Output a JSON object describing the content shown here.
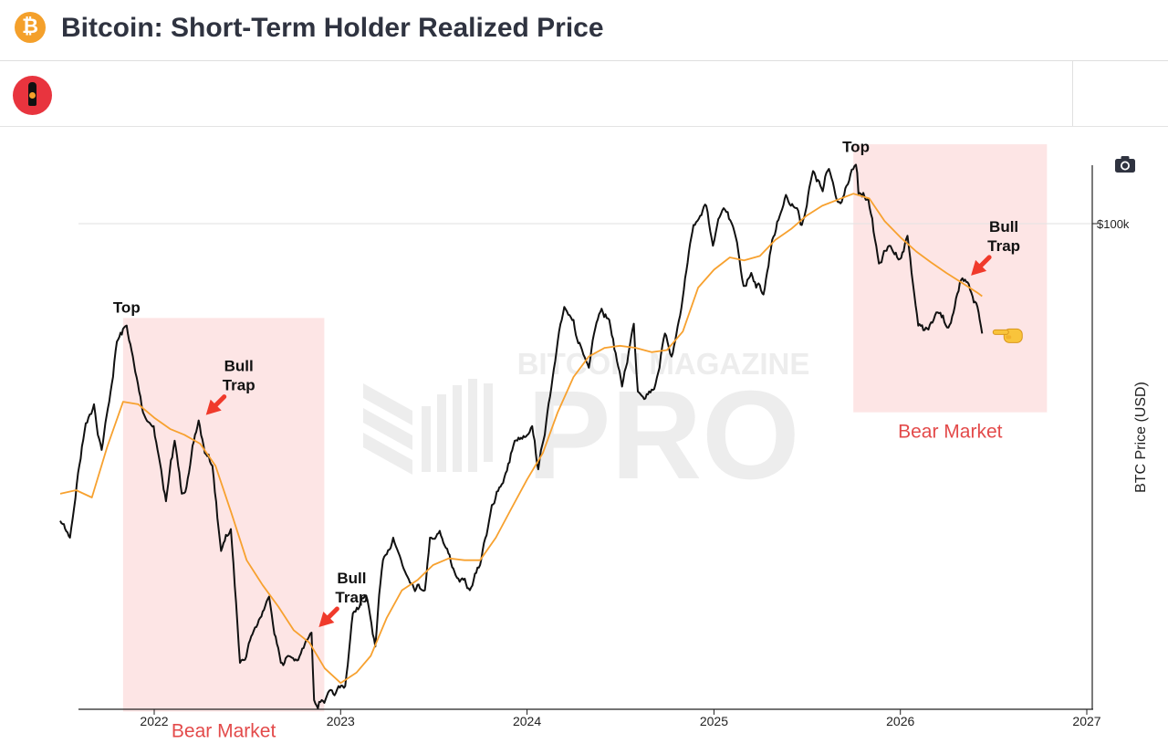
{
  "header": {
    "title": "Bitcoin: Short-Term Holder Realized Price",
    "logo_icon": "bitcoin-icon",
    "logo_glyph": "₿"
  },
  "toolbar": {
    "avatar_icon": "bottle-avatar-icon",
    "screenshot_icon": "camera-icon"
  },
  "colors": {
    "price": "#111111",
    "sth_realized_price": "#f7a12f",
    "bear_zone": "#fde5e5",
    "bear_label": "#e34a4a",
    "arrow": "#f03a2b"
  },
  "watermark": {
    "line1": "BITCOIN MAGAZINE",
    "line2": "PRO"
  },
  "chart_data": {
    "type": "line",
    "x_ticks": [
      "2022",
      "2023",
      "2024",
      "2025",
      "2026",
      "2027"
    ],
    "xlim": [
      "2021-07-01",
      "2027-01-01"
    ],
    "y_scale": "log",
    "y_ticks": [
      {
        "value": 100000,
        "label": "$100k"
      }
    ],
    "ylabel": "BTC Price (USD)",
    "grid": "horizontal line at $100k",
    "series": [
      {
        "key": "price",
        "points": [
          [
            "2021-07-01",
            32500
          ],
          [
            "2021-07-20",
            30500
          ],
          [
            "2021-08-05",
            39000
          ],
          [
            "2021-08-20",
            47000
          ],
          [
            "2021-09-05",
            50500
          ],
          [
            "2021-09-20",
            42500
          ],
          [
            "2021-10-05",
            51000
          ],
          [
            "2021-10-20",
            64000
          ],
          [
            "2021-11-08",
            68000
          ],
          [
            "2021-11-25",
            57000
          ],
          [
            "2021-12-10",
            49000
          ],
          [
            "2021-12-31",
            46500
          ],
          [
            "2022-01-10",
            41500
          ],
          [
            "2022-01-24",
            35000
          ],
          [
            "2022-02-10",
            44000
          ],
          [
            "2022-02-24",
            36000
          ],
          [
            "2022-03-10",
            39000
          ],
          [
            "2022-03-29",
            47500
          ],
          [
            "2022-04-10",
            42000
          ],
          [
            "2022-04-25",
            40000
          ],
          [
            "2022-05-12",
            29000
          ],
          [
            "2022-05-31",
            31500
          ],
          [
            "2022-06-18",
            19000
          ],
          [
            "2022-07-10",
            21000
          ],
          [
            "2022-08-14",
            24400
          ],
          [
            "2022-09-06",
            19000
          ],
          [
            "2022-09-20",
            19500
          ],
          [
            "2022-10-10",
            19200
          ],
          [
            "2022-11-05",
            21300
          ],
          [
            "2022-11-10",
            16500
          ],
          [
            "2022-11-25",
            16500
          ],
          [
            "2022-12-20",
            16800
          ],
          [
            "2023-01-10",
            17400
          ],
          [
            "2023-01-25",
            22900
          ],
          [
            "2023-02-20",
            24500
          ],
          [
            "2023-03-10",
            20200
          ],
          [
            "2023-03-25",
            28000
          ],
          [
            "2023-04-14",
            30500
          ],
          [
            "2023-05-12",
            26300
          ],
          [
            "2023-06-15",
            25000
          ],
          [
            "2023-06-25",
            30500
          ],
          [
            "2023-07-14",
            31300
          ],
          [
            "2023-08-17",
            26200
          ],
          [
            "2023-09-11",
            25000
          ],
          [
            "2023-10-01",
            27500
          ],
          [
            "2023-10-24",
            34500
          ],
          [
            "2023-11-15",
            37500
          ],
          [
            "2023-12-08",
            44000
          ],
          [
            "2024-01-11",
            46500
          ],
          [
            "2024-01-23",
            39500
          ],
          [
            "2024-02-15",
            52000
          ],
          [
            "2024-03-14",
            73000
          ],
          [
            "2024-04-01",
            69500
          ],
          [
            "2024-04-15",
            63000
          ],
          [
            "2024-05-01",
            58000
          ],
          [
            "2024-05-21",
            71000
          ],
          [
            "2024-06-10",
            69500
          ],
          [
            "2024-07-05",
            54000
          ],
          [
            "2024-07-28",
            68500
          ],
          [
            "2024-08-05",
            53000
          ],
          [
            "2024-09-06",
            53500
          ],
          [
            "2024-09-27",
            66000
          ],
          [
            "2024-10-10",
            60500
          ],
          [
            "2024-10-29",
            72500
          ],
          [
            "2024-11-13",
            90000
          ],
          [
            "2024-11-22",
            99500
          ],
          [
            "2024-12-05",
            103000
          ],
          [
            "2024-12-17",
            107000
          ],
          [
            "2024-12-30",
            92000
          ],
          [
            "2025-01-20",
            106000
          ],
          [
            "2025-02-10",
            97000
          ],
          [
            "2025-02-28",
            79000
          ],
          [
            "2025-03-15",
            83000
          ],
          [
            "2025-04-08",
            76500
          ],
          [
            "2025-04-25",
            94000
          ],
          [
            "2025-05-22",
            111500
          ],
          [
            "2025-06-15",
            105000
          ],
          [
            "2025-06-22",
            99500
          ],
          [
            "2025-07-14",
            122000
          ],
          [
            "2025-08-02",
            113000
          ],
          [
            "2025-08-14",
            123000
          ],
          [
            "2025-09-01",
            108500
          ],
          [
            "2025-09-20",
            116000
          ],
          [
            "2025-10-06",
            125000
          ],
          [
            "2025-10-11",
            112000
          ],
          [
            "2025-10-30",
            110000
          ],
          [
            "2025-11-20",
            86000
          ],
          [
            "2025-12-10",
            92000
          ],
          [
            "2025-12-31",
            87500
          ],
          [
            "2026-01-15",
            95500
          ],
          [
            "2026-02-05",
            68000
          ],
          [
            "2026-02-25",
            67000
          ],
          [
            "2026-03-15",
            71500
          ],
          [
            "2026-04-05",
            67500
          ],
          [
            "2026-04-25",
            77500
          ],
          [
            "2026-05-05",
            80500
          ],
          [
            "2026-05-20",
            77000
          ],
          [
            "2026-06-01",
            73000
          ],
          [
            "2026-06-10",
            66000
          ]
        ]
      },
      {
        "key": "sth_realized_price",
        "points": [
          [
            "2021-07-01",
            36000
          ],
          [
            "2021-08-01",
            36500
          ],
          [
            "2021-09-01",
            35500
          ],
          [
            "2021-10-01",
            43000
          ],
          [
            "2021-11-01",
            51000
          ],
          [
            "2021-12-01",
            50500
          ],
          [
            "2022-01-01",
            48000
          ],
          [
            "2022-02-01",
            46000
          ],
          [
            "2022-03-01",
            45000
          ],
          [
            "2022-04-01",
            43500
          ],
          [
            "2022-05-01",
            40000
          ],
          [
            "2022-06-01",
            33500
          ],
          [
            "2022-07-01",
            28000
          ],
          [
            "2022-08-01",
            25500
          ],
          [
            "2022-09-01",
            23500
          ],
          [
            "2022-10-01",
            21500
          ],
          [
            "2022-11-01",
            20500
          ],
          [
            "2022-12-01",
            18600
          ],
          [
            "2023-01-01",
            17600
          ],
          [
            "2023-02-01",
            18300
          ],
          [
            "2023-03-01",
            19500
          ],
          [
            "2023-04-01",
            22500
          ],
          [
            "2023-05-01",
            25000
          ],
          [
            "2023-06-01",
            26000
          ],
          [
            "2023-07-01",
            27500
          ],
          [
            "2023-08-01",
            28200
          ],
          [
            "2023-09-01",
            28000
          ],
          [
            "2023-10-01",
            28000
          ],
          [
            "2023-11-01",
            30500
          ],
          [
            "2023-12-01",
            34000
          ],
          [
            "2024-01-01",
            38000
          ],
          [
            "2024-02-01",
            42000
          ],
          [
            "2024-03-01",
            49000
          ],
          [
            "2024-04-01",
            56000
          ],
          [
            "2024-05-01",
            60500
          ],
          [
            "2024-06-01",
            62500
          ],
          [
            "2024-07-01",
            63000
          ],
          [
            "2024-08-01",
            62500
          ],
          [
            "2024-09-01",
            61500
          ],
          [
            "2024-10-01",
            62000
          ],
          [
            "2024-11-01",
            66500
          ],
          [
            "2024-12-01",
            78500
          ],
          [
            "2025-01-01",
            84000
          ],
          [
            "2025-02-01",
            88000
          ],
          [
            "2025-03-01",
            87000
          ],
          [
            "2025-04-01",
            88500
          ],
          [
            "2025-05-01",
            94000
          ],
          [
            "2025-06-01",
            98000
          ],
          [
            "2025-07-01",
            103000
          ],
          [
            "2025-08-01",
            107000
          ],
          [
            "2025-09-01",
            109500
          ],
          [
            "2025-10-01",
            112000
          ],
          [
            "2025-11-01",
            110000
          ],
          [
            "2025-12-01",
            101000
          ],
          [
            "2026-01-01",
            95000
          ],
          [
            "2026-02-01",
            90000
          ],
          [
            "2026-03-01",
            86500
          ],
          [
            "2026-04-01",
            83000
          ],
          [
            "2026-05-01",
            80000
          ],
          [
            "2026-06-01",
            77000
          ],
          [
            "2026-06-10",
            76000
          ]
        ]
      }
    ],
    "bear_market_zones": [
      {
        "start": "2021-11-01",
        "end": "2022-11-30",
        "y_top": 70000,
        "y_bottom": 15800,
        "label": "Bear Market"
      },
      {
        "start": "2025-10-01",
        "end": "2026-10-15",
        "y_top": 135000,
        "y_bottom": 49000,
        "label": "Bear Market"
      }
    ],
    "annotations": [
      {
        "text": "Top",
        "date": "2021-11-08",
        "value": 68000
      },
      {
        "text": "Bull Trap",
        "date": "2022-03-29",
        "value": 47500
      },
      {
        "text": "Bull Trap",
        "date": "2022-11-05",
        "value": 21300
      },
      {
        "text": "Top",
        "date": "2025-10-06",
        "value": 125000
      },
      {
        "text": "Bull Trap",
        "date": "2026-05-05",
        "value": 80500
      }
    ],
    "pointer_annotation": {
      "date": "2026-06-10",
      "value": 66000,
      "icon": "pointing-hand-icon"
    }
  }
}
